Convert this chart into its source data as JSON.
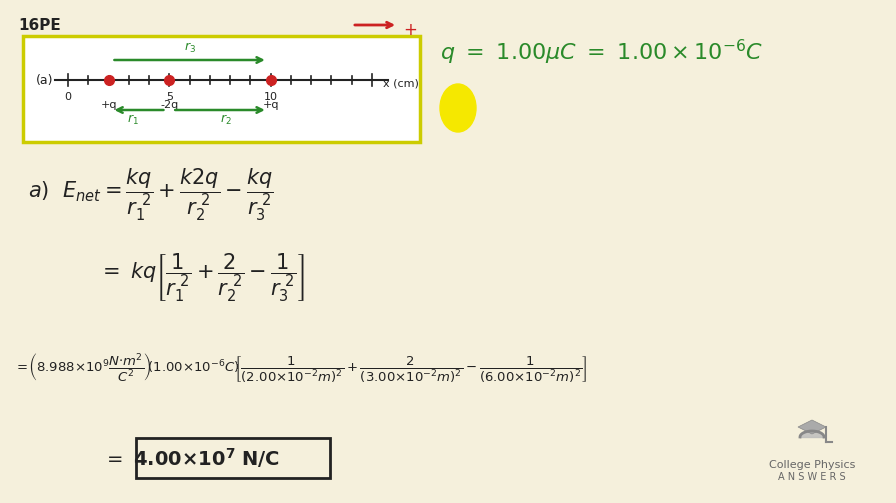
{
  "bg_color": "#f5f0dc",
  "title_text": "16PE",
  "title_color": "#222222",
  "green_color": "#2a8a2a",
  "red_color": "#cc2222",
  "dark_color": "#222222",
  "logo_text1": "College Physics",
  "logo_text2": "A N S W E R S"
}
